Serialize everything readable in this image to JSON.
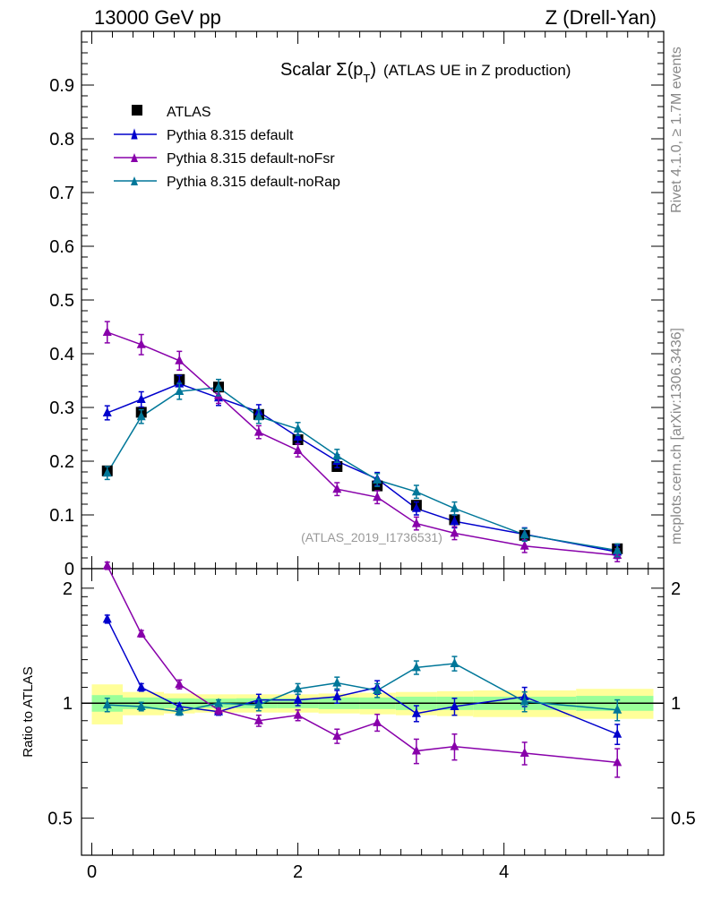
{
  "header": {
    "left": "13000 GeV pp",
    "right": "Z (Drell-Yan)"
  },
  "side": {
    "rivet": "Rivet 4.1.0, ≥ 1.7M events",
    "mcplots": "mcplots.cern.ch [arXiv:1306.3436]"
  },
  "colors": {
    "atlas": "#000000",
    "default": "#0000cc",
    "noFsr": "#8800aa",
    "noRap": "#007799",
    "band_inner": "#99ff99",
    "band_outer": "#ffff99"
  },
  "chart_data": [
    {
      "type": "scatter",
      "title_main": "Scalar Σ(p",
      "title_sub": "T",
      "title_close": ")",
      "title_rest": "(ATLAS UE in Z production)",
      "analysis_id": "(ATLAS_2019_I1736531)",
      "xlim": [
        -0.1,
        5.55
      ],
      "ylim": [
        0,
        1.0
      ],
      "ytick_labels": [
        "0",
        "0.1",
        "0.2",
        "0.3",
        "0.4",
        "0.5",
        "0.6",
        "0.7",
        "0.8",
        "0.9"
      ],
      "legend_position": "top-left",
      "x": [
        0.15,
        0.48,
        0.85,
        1.23,
        1.62,
        2.0,
        2.38,
        2.77,
        3.15,
        3.52,
        4.2,
        5.1
      ],
      "series": [
        {
          "name": "ATLAS",
          "marker": "square",
          "color": "#000000",
          "values": [
            0.182,
            0.291,
            0.352,
            0.338,
            0.287,
            0.24,
            0.19,
            0.154,
            0.118,
            0.091,
            0.062,
            0.037
          ]
        },
        {
          "name": "Pythia 8.315 default",
          "marker": "triangle",
          "color": "#0000cc",
          "values": [
            0.29,
            0.315,
            0.344,
            0.318,
            0.292,
            0.245,
            0.2,
            0.167,
            0.112,
            0.088,
            0.064,
            0.031
          ]
        },
        {
          "name": "Pythia 8.315 default-noFsr",
          "marker": "triangle",
          "color": "#8800aa",
          "values": [
            0.44,
            0.417,
            0.387,
            0.322,
            0.254,
            0.22,
            0.148,
            0.133,
            0.084,
            0.066,
            0.042,
            0.025
          ]
        },
        {
          "name": "Pythia 8.315 default-noRap",
          "marker": "triangle",
          "color": "#007799",
          "values": [
            0.178,
            0.283,
            0.33,
            0.337,
            0.283,
            0.26,
            0.21,
            0.165,
            0.143,
            0.112,
            0.063,
            0.034
          ]
        }
      ]
    },
    {
      "type": "scatter",
      "ylabel": "Ratio to ATLAS",
      "xlim": [
        -0.1,
        5.55
      ],
      "ylim": [
        0.4,
        2.25
      ],
      "ytick_labels": [
        "0.5",
        "1",
        "2"
      ],
      "xtick_labels": [
        "0",
        "2",
        "4"
      ],
      "x": [
        0.15,
        0.48,
        0.85,
        1.23,
        1.62,
        2.0,
        2.38,
        2.77,
        3.15,
        3.52,
        4.2,
        5.1
      ],
      "band_edges": [
        0.0,
        0.3,
        0.7,
        1.0,
        1.4,
        1.8,
        2.2,
        2.6,
        2.95,
        3.35,
        3.7,
        4.7,
        5.45
      ],
      "band_inner_halfwidth": [
        0.05,
        0.035,
        0.03,
        0.028,
        0.03,
        0.03,
        0.035,
        0.035,
        0.04,
        0.04,
        0.04,
        0.045
      ],
      "band_outer_halfwidth": [
        0.12,
        0.07,
        0.06,
        0.055,
        0.055,
        0.055,
        0.06,
        0.065,
        0.07,
        0.075,
        0.08,
        0.09
      ],
      "series": [
        {
          "name": "Pythia 8.315 default",
          "color": "#0000cc",
          "values": [
            1.66,
            1.1,
            0.98,
            0.95,
            1.02,
            1.02,
            1.04,
            1.1,
            0.94,
            0.98,
            1.04,
            0.83
          ],
          "errors": [
            0.04,
            0.025,
            0.02,
            0.02,
            0.035,
            0.035,
            0.04,
            0.045,
            0.045,
            0.05,
            0.06,
            0.05
          ]
        },
        {
          "name": "Pythia 8.315 default-noFsr",
          "color": "#8800aa",
          "values": [
            2.29,
            1.52,
            1.12,
            0.96,
            0.9,
            0.93,
            0.82,
            0.89,
            0.75,
            0.77,
            0.74,
            0.7
          ],
          "errors": [
            0.05,
            0.03,
            0.03,
            0.025,
            0.03,
            0.03,
            0.035,
            0.045,
            0.055,
            0.06,
            0.05,
            0.06
          ]
        },
        {
          "name": "Pythia 8.315 default-noRap",
          "color": "#007799",
          "values": [
            0.99,
            0.98,
            0.95,
            1.0,
            0.99,
            1.09,
            1.13,
            1.08,
            1.24,
            1.27,
            1.01,
            0.96
          ],
          "errors": [
            0.04,
            0.025,
            0.02,
            0.02,
            0.035,
            0.035,
            0.04,
            0.045,
            0.05,
            0.055,
            0.06,
            0.06
          ]
        }
      ]
    }
  ]
}
